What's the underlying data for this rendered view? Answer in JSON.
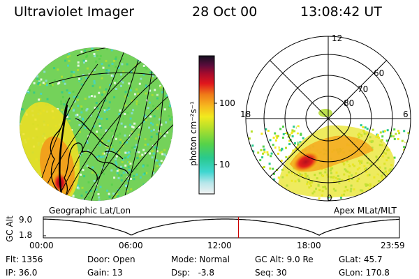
{
  "header": {
    "title": "Ultraviolet Imager",
    "date": "28 Oct 00",
    "time": "13:08:42 UT"
  },
  "left_panel": {
    "caption": "Geographic Lat/Lon"
  },
  "right_panel": {
    "caption": "Apex MLat/MLT",
    "mlt_labels": [
      "12",
      "18",
      "6",
      "0"
    ],
    "lat_labels": [
      "60",
      "70",
      "80"
    ]
  },
  "colorbar": {
    "unit": "photon cm⁻²s⁻¹",
    "ticks": [
      "100",
      "10"
    ],
    "scale": "log"
  },
  "timeline": {
    "ylabel": "GC Alt",
    "y_ticks": [
      "9.0",
      "1.8"
    ],
    "x_ticks": [
      "00:00",
      "06:00",
      "12:00",
      "18:00",
      "23:59"
    ],
    "marker_time": "13:08:42"
  },
  "info": {
    "flt": "Flt: 1356",
    "ip": "IP: 36.0",
    "door": "Door: Open",
    "gain": "Gain: 13",
    "mode": "Mode: Normal",
    "dsp": "Dsp:   -3.8",
    "gcalt": "GC Alt: 9.0 Re",
    "seq": "Seq: 30",
    "glat": "GLat: 45.7",
    "glon": "GLon: 170.8"
  },
  "colors": {
    "background": "#ffffff",
    "marker": "#cc0000",
    "text": "#000000"
  }
}
